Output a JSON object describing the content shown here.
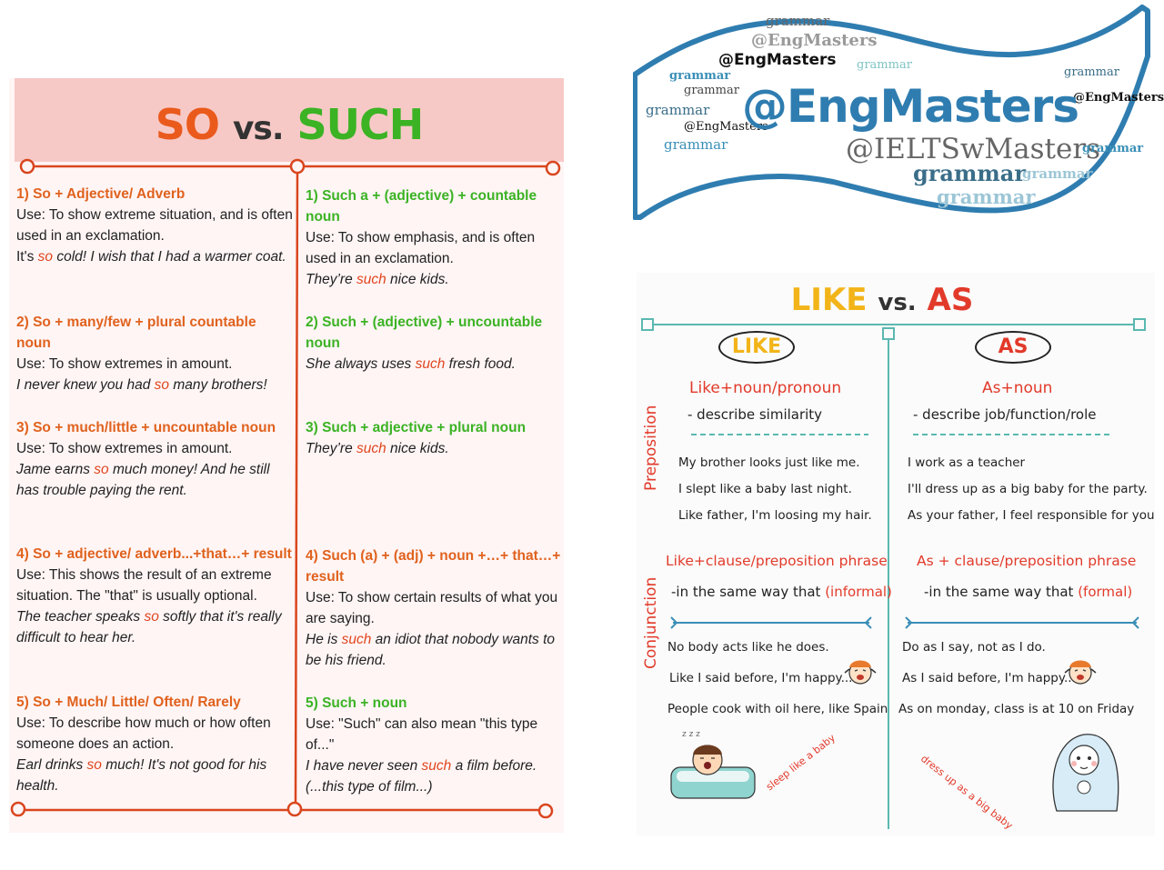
{
  "so_such": {
    "title": {
      "so": "SO",
      "vs": "vs.",
      "such": "SUCH"
    },
    "so_items": [
      {
        "heading": "1) So + Adjective/ Adverb",
        "use": "Use: To show extreme situation, and is often used in an exclamation.",
        "example_pre": "It's ",
        "example_kw": "so",
        "example_post": " cold! I wish that I had a warmer coat."
      },
      {
        "heading": "2) So + many/few + plural countable noun",
        "use": "Use: To show extremes in amount.",
        "example_pre": "I never knew you had ",
        "example_kw": "so",
        "example_post": " many brothers!"
      },
      {
        "heading": "3) So + much/little + uncountable noun",
        "use": "Use: To show extremes in amount.",
        "example_pre": "Jame earns ",
        "example_kw": "so",
        "example_post": " much money! And he still has trouble paying the rent."
      },
      {
        "heading": "4) So + adjective/ adverb...+that…+ result",
        "use": "Use: This shows the result of an extreme situation. The \"that\" is usually optional.",
        "example_pre": "The teacher speaks ",
        "example_kw": "so",
        "example_post": " softly that it's really difficult to hear her."
      },
      {
        "heading": "5) So + Much/ Little/ Often/ Rarely",
        "use": "Use: To describe how much or how often someone does an action.",
        "example_pre": "Earl drinks ",
        "example_kw": "so",
        "example_post": " much! It's not good for his health."
      }
    ],
    "such_items": [
      {
        "heading": "1) Such a + (adjective) + countable noun",
        "use": "Use: To show emphasis, and is often used in an exclamation.",
        "example_pre": "They’re ",
        "example_kw": "such",
        "example_post": " nice kids."
      },
      {
        "heading": "2) Such + (adjective) + uncountable noun",
        "use": "",
        "example_pre": "She always uses ",
        "example_kw": "such",
        "example_post": " fresh food."
      },
      {
        "heading": "3) Such + adjective + plural noun",
        "use": "",
        "example_pre": "They’re ",
        "example_kw": "such",
        "example_post": " nice kids."
      },
      {
        "heading": "4) Such (a) + (adj) + noun +…+ that…+ result",
        "use": "Use: To show certain results of what you are saying.",
        "example_pre": "He is ",
        "example_kw": "such",
        "example_post": " an idiot that nobody wants to be his friend."
      },
      {
        "heading": "5) Such + noun",
        "use": "Use: \"Such\" can also mean \"this type of...\"",
        "example_pre": "I have never seen ",
        "example_kw": "such",
        "example_post": " a film before. (...this type of film...)"
      }
    ]
  },
  "banner": {
    "main": "@EngMasters",
    "second": "@IELTSwMasters",
    "words": [
      "grammar",
      "@EngMasters",
      "@EngMasters",
      "grammar",
      "grammar",
      "grammar",
      "grammar",
      "@EngMasters",
      "grammar",
      "@EngMasters",
      "grammar",
      "grammar",
      "grammar",
      "grammar",
      "grammar"
    ]
  },
  "like_as": {
    "title": {
      "like": "LIKE",
      "vs": "vs.",
      "as": "AS"
    },
    "like_oval": "LIKE",
    "as_oval": "AS",
    "side_preposition": "Preposition",
    "side_conjunction": "Conjunction",
    "like_prep_rule": "Like+noun/pronoun",
    "like_prep_desc": "- describe similarity",
    "as_prep_rule": "As+noun",
    "as_prep_desc": "- describe job/function/role",
    "like_prep_examples": [
      "My brother looks just like me.",
      "I slept like a baby last night.",
      "Like father, I'm loosing my hair."
    ],
    "as_prep_examples": [
      "I work as a teacher",
      "I'll dress up as a big baby for the party.",
      "As your father, I feel responsible for you"
    ],
    "like_conj_rule": "Like+clause/preposition phrase",
    "like_conj_desc": "-in the same way that",
    "like_conj_note": "(informal)",
    "as_conj_rule": "As + clause/preposition phrase",
    "as_conj_desc": "-in the same way that",
    "as_conj_note": "(formal)",
    "like_conj_examples": [
      "No body acts like he does.",
      "Like I said before, I'm happy...",
      "People cook with oil here, like Spain"
    ],
    "as_conj_examples": [
      "Do as I say, not as I do.",
      "As I said before, I'm happy...",
      "As on monday, class is at 10 on Friday"
    ],
    "caption_left": "sleep like a baby",
    "caption_right": "dress up as a big baby",
    "colors": {
      "like": "#f2b418",
      "as": "#e23a2a",
      "line": "#5bb8b0"
    }
  }
}
